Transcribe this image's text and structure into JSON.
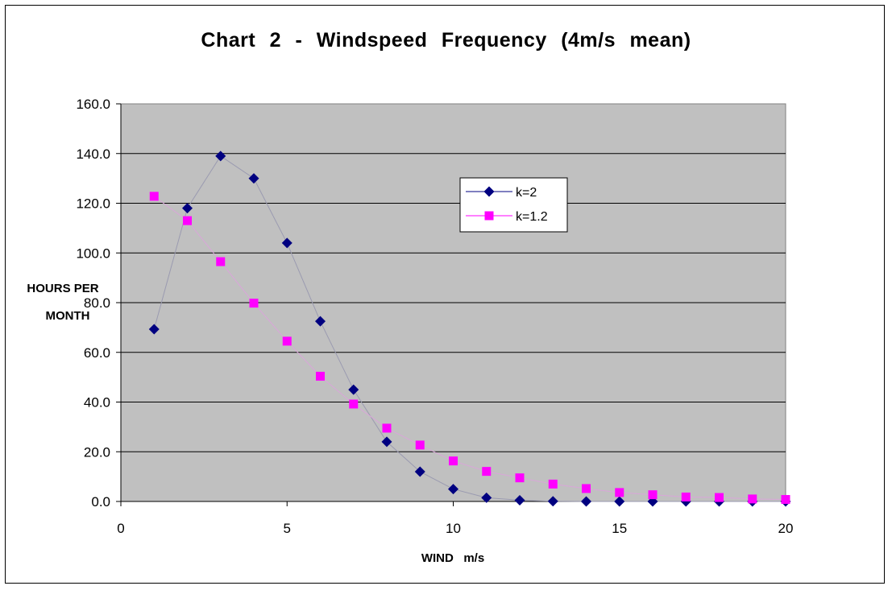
{
  "chart_data": {
    "type": "scatter",
    "title": "Chart  2  -  Windspeed  Frequency  (4m/s  mean)",
    "xlabel": "WIND   m/s",
    "ylabel_line1": "HOURS PER",
    "ylabel_line2": "MONTH",
    "xlim": [
      0,
      20
    ],
    "ylim": [
      0,
      160
    ],
    "x_ticks": [
      "0",
      "5",
      "10",
      "15",
      "20"
    ],
    "y_ticks": [
      "0.0",
      "20.0",
      "40.0",
      "60.0",
      "80.0",
      "100.0",
      "120.0",
      "140.0",
      "160.0"
    ],
    "grid": true,
    "legend_position": "right-center",
    "series": [
      {
        "name": "k=2",
        "marker": "diamond",
        "color": "#000080",
        "x": [
          1,
          2,
          3,
          4,
          5,
          6,
          7,
          8,
          9,
          10,
          11,
          12,
          13,
          14,
          15,
          16,
          17,
          18,
          19,
          20
        ],
        "values": [
          69.3,
          118.0,
          139.0,
          130.0,
          104.0,
          72.5,
          45.0,
          24.0,
          12.0,
          5.0,
          1.5,
          0.5,
          0.1,
          0.0,
          0.0,
          0.0,
          0.0,
          0.0,
          0.0,
          0.0
        ]
      },
      {
        "name": "k=1.2",
        "marker": "square",
        "color": "#FF00FF",
        "x": [
          1,
          2,
          3,
          4,
          5,
          6,
          7,
          8,
          9,
          10,
          11,
          12,
          13,
          14,
          15,
          16,
          17,
          18,
          19,
          20
        ],
        "values": [
          122.8,
          113.0,
          96.5,
          79.8,
          64.5,
          50.4,
          39.2,
          29.5,
          22.7,
          16.3,
          12.1,
          9.5,
          7.0,
          5.2,
          3.6,
          2.7,
          1.8,
          1.6,
          1.0,
          0.8
        ]
      }
    ]
  },
  "colors": {
    "plot_background": "#C0C0C0",
    "gridline": "#000000"
  }
}
